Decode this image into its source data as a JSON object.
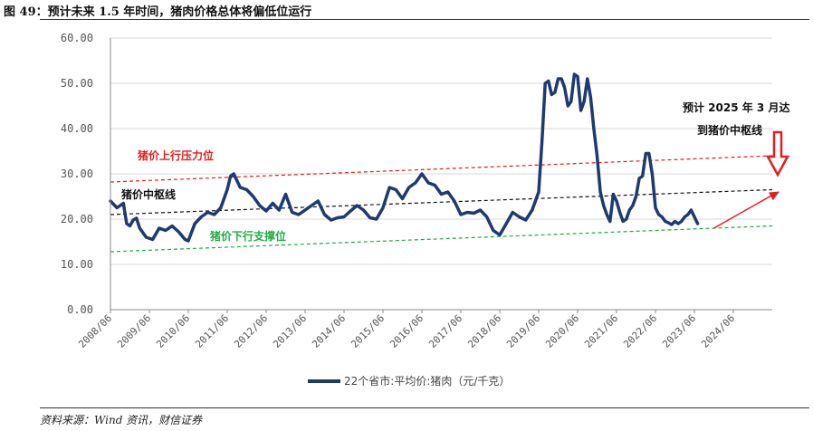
{
  "figure": {
    "title": "图 49：预计未来 1.5 年时间，猪肉价格总体将偏低位运行",
    "source": "资料来源：Wind 资讯，财信证券"
  },
  "chart_data": {
    "type": "line",
    "ylim": [
      0,
      60
    ],
    "yticks": [
      "0.00",
      "10.00",
      "20.00",
      "30.00",
      "40.00",
      "50.00",
      "60.00"
    ],
    "xlim": [
      "2008-06",
      "2025-06"
    ],
    "xticks": [
      "2008/06",
      "2009/06",
      "2010/06",
      "2011/06",
      "2012/06",
      "2013/06",
      "2014/06",
      "2015/06",
      "2016/06",
      "2017/06",
      "2018/06",
      "2019/06",
      "2020/06",
      "2021/06",
      "2022/06",
      "2023/06",
      "2024/06"
    ],
    "grid": true,
    "legend_position": "bottom",
    "series": [
      {
        "name": "22个省市:平均价:猪肉（元/千克）",
        "color": "#1f3a6e",
        "x": [
          "2008-06",
          "2008-08",
          "2008-10",
          "2008-11",
          "2008-12",
          "2009-01",
          "2009-02",
          "2009-03",
          "2009-05",
          "2009-07",
          "2009-09",
          "2009-11",
          "2010-01",
          "2010-03",
          "2010-05",
          "2010-06",
          "2010-08",
          "2010-10",
          "2010-12",
          "2011-02",
          "2011-04",
          "2011-06",
          "2011-07",
          "2011-08",
          "2011-10",
          "2011-12",
          "2012-02",
          "2012-04",
          "2012-06",
          "2012-08",
          "2012-10",
          "2012-12",
          "2013-02",
          "2013-04",
          "2013-06",
          "2013-08",
          "2013-10",
          "2013-12",
          "2014-02",
          "2014-04",
          "2014-06",
          "2014-08",
          "2014-10",
          "2014-12",
          "2015-02",
          "2015-04",
          "2015-06",
          "2015-08",
          "2015-10",
          "2015-12",
          "2016-02",
          "2016-04",
          "2016-06",
          "2016-08",
          "2016-10",
          "2016-12",
          "2017-02",
          "2017-04",
          "2017-06",
          "2017-08",
          "2017-10",
          "2017-12",
          "2018-02",
          "2018-04",
          "2018-06",
          "2018-08",
          "2018-10",
          "2018-12",
          "2019-02",
          "2019-04",
          "2019-06",
          "2019-07",
          "2019-08",
          "2019-09",
          "2019-10",
          "2019-11",
          "2019-12",
          "2020-01",
          "2020-02",
          "2020-03",
          "2020-04",
          "2020-05",
          "2020-06",
          "2020-07",
          "2020-08",
          "2020-09",
          "2020-10",
          "2020-11",
          "2020-12",
          "2021-01",
          "2021-02",
          "2021-03",
          "2021-04",
          "2021-05",
          "2021-06",
          "2021-07",
          "2021-08",
          "2021-09",
          "2021-10",
          "2021-11",
          "2021-12",
          "2022-01",
          "2022-02",
          "2022-03",
          "2022-04",
          "2022-05",
          "2022-06",
          "2022-07",
          "2022-08",
          "2022-09",
          "2022-10",
          "2022-11",
          "2022-12",
          "2023-01",
          "2023-02",
          "2023-03",
          "2023-04",
          "2023-05",
          "2023-06",
          "2023-07"
        ],
        "y": [
          24.0,
          22.5,
          23.5,
          19.0,
          18.5,
          19.8,
          20.2,
          18.0,
          16.0,
          15.5,
          18.0,
          17.5,
          18.5,
          17.2,
          15.5,
          15.2,
          19.0,
          20.5,
          21.5,
          21.0,
          22.5,
          26.5,
          29.5,
          30.0,
          27.0,
          26.5,
          25.0,
          23.0,
          21.8,
          23.5,
          22.0,
          25.5,
          21.5,
          21.0,
          22.0,
          23.0,
          24.0,
          21.0,
          19.8,
          20.3,
          20.5,
          21.8,
          23.0,
          22.0,
          20.3,
          20.0,
          22.5,
          27.0,
          26.5,
          24.5,
          27.0,
          28.0,
          30.0,
          28.0,
          27.5,
          25.5,
          26.0,
          24.0,
          21.0,
          21.5,
          21.3,
          22.0,
          20.5,
          17.5,
          16.5,
          19.0,
          21.5,
          20.5,
          19.8,
          22.0,
          26.0,
          37.0,
          50.0,
          50.5,
          47.5,
          48.0,
          51.0,
          51.0,
          49.0,
          45.0,
          46.0,
          52.0,
          51.5,
          44.0,
          46.0,
          51.0,
          47.0,
          40.0,
          34.0,
          26.0,
          23.0,
          21.0,
          19.5,
          25.5,
          24.0,
          21.5,
          19.5,
          20.0,
          22.0,
          23.0,
          25.0,
          29.0,
          29.5,
          34.5,
          34.5,
          30.0,
          22.5,
          21.0,
          20.5,
          19.5,
          19.2,
          18.8,
          19.5,
          19.0,
          19.5,
          20.5,
          21.0,
          22.0,
          20.5,
          19.0
        ]
      }
    ],
    "trendlines": [
      {
        "label": "猪价上行压力位",
        "color": "#e02020",
        "from": [
          "2008-06",
          28.2
        ],
        "to": [
          "2025-06",
          34.0
        ]
      },
      {
        "label": "猪价中枢线",
        "color": "#111111",
        "from": [
          "2008-06",
          21.0
        ],
        "to": [
          "2025-06",
          26.5
        ]
      },
      {
        "label": "猪价下行支撑位",
        "color": "#22aa44",
        "from": [
          "2008-06",
          12.8
        ],
        "to": [
          "2025-06",
          18.5
        ]
      }
    ],
    "annotations": {
      "upper_label": "猪价上行压力位",
      "center_label": "猪价中枢线",
      "lower_label": "猪价下行支撑位",
      "forecast_line1": "预计 2025 年 3 月达",
      "forecast_line2": "到猪价中枢线"
    },
    "forecast_arrow": {
      "from": [
        "2023-12",
        18.0
      ],
      "to": [
        "2025-06",
        26.5
      ]
    }
  }
}
